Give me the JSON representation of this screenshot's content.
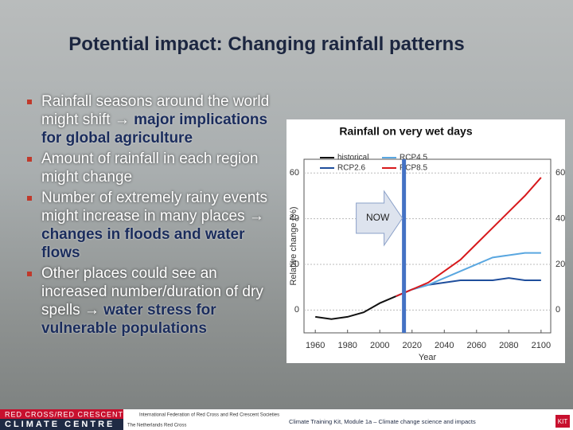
{
  "title": "Potential impact: Changing rainfall patterns",
  "bullets": [
    {
      "text": "Rainfall seasons around the world might shift →",
      "emphasis": "major implications for global agriculture"
    },
    {
      "text": "Amount of rainfall in each region might change"
    },
    {
      "text": "Number of extremely rainy events might increase in many places →",
      "emphasis": "changes in floods and water flows"
    },
    {
      "text": "Other places could see an increased number/duration of dry spells →",
      "emphasis": "water stress for vulnerable populations"
    }
  ],
  "chart_data": {
    "type": "line",
    "title": "Rainfall on very wet days",
    "x_label": "Year",
    "y_label": "Relative change (%)",
    "x": [
      1960,
      1970,
      1980,
      1990,
      2000,
      2010,
      2020,
      2030,
      2040,
      2050,
      2060,
      2070,
      2080,
      2090,
      2100
    ],
    "series": [
      {
        "name": "historical",
        "color": "#111111",
        "values": [
          -3,
          -4,
          -3,
          -1,
          3,
          6,
          null,
          null,
          null,
          null,
          null,
          null,
          null,
          null,
          null
        ]
      },
      {
        "name": "RCP2.6",
        "color": "#1f4e9c",
        "values": [
          null,
          null,
          null,
          null,
          null,
          6,
          9,
          11,
          12,
          13,
          13,
          13,
          14,
          13,
          13
        ]
      },
      {
        "name": "RCP4.5",
        "color": "#5aa7e0",
        "values": [
          null,
          null,
          null,
          null,
          null,
          6,
          9,
          11,
          14,
          17,
          20,
          23,
          24,
          25,
          25
        ]
      },
      {
        "name": "RCP8.5",
        "color": "#d7191c",
        "values": [
          null,
          null,
          null,
          null,
          null,
          6,
          9,
          12,
          17,
          22,
          29,
          36,
          43,
          50,
          58
        ]
      }
    ],
    "xlim": [
      1953,
      2106
    ],
    "ylim": [
      -10,
      66
    ],
    "xticks": [
      1960,
      1980,
      2000,
      2020,
      2040,
      2060,
      2080,
      2100
    ],
    "yticks": [
      0,
      20,
      40,
      60
    ],
    "now_marker": {
      "label": "NOW",
      "x": 2015
    }
  },
  "footer": {
    "org_line1": "RED CROSS/RED CRESCENT",
    "org_line2": "CLIMATE CENTRE",
    "ifrc": "International Federation of Red Cross and Red Crescent Societies",
    "nlrc": "The Netherlands Red Cross",
    "module": "Climate Training Kit, Module 1a – Climate change science and impacts",
    "kit": "KIT"
  }
}
